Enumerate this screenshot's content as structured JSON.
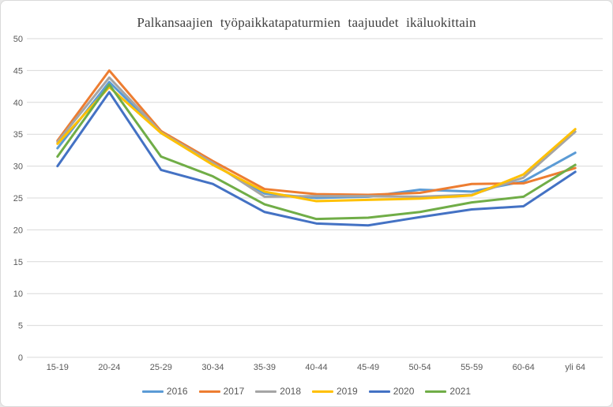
{
  "window": {
    "background": "#ffffff",
    "border_color": "#d9d9d9"
  },
  "chart_data": {
    "type": "line",
    "title": "Palkansaajien työpaikkatapaturmien taajuudet ikäluokittain",
    "title_color": "#404040",
    "xlabel": "",
    "ylabel": "",
    "categories": [
      "15-19",
      "20-24",
      "25-29",
      "30-34",
      "35-39",
      "40-44",
      "45-49",
      "50-54",
      "55-59",
      "60-64",
      "yli 64"
    ],
    "series": [
      {
        "name": "2016",
        "color": "#5B9BD5",
        "values": [
          32.8,
          43.2,
          35.2,
          30.3,
          25.7,
          25.0,
          25.2,
          26.3,
          26.0,
          27.6,
          32.1
        ]
      },
      {
        "name": "2017",
        "color": "#ED7D31",
        "values": [
          34.0,
          45.0,
          35.5,
          30.8,
          26.4,
          25.6,
          25.5,
          25.8,
          27.2,
          27.3,
          29.7
        ]
      },
      {
        "name": "2018",
        "color": "#A5A5A5",
        "values": [
          33.8,
          43.9,
          35.3,
          30.5,
          25.2,
          25.3,
          25.3,
          25.2,
          25.5,
          28.2,
          35.4
        ]
      },
      {
        "name": "2019",
        "color": "#FFC000",
        "values": [
          33.5,
          42.4,
          35.2,
          30.2,
          26.0,
          24.5,
          24.7,
          24.9,
          25.4,
          28.7,
          35.8
        ]
      },
      {
        "name": "2020",
        "color": "#4472C4",
        "values": [
          30.0,
          41.6,
          29.4,
          27.2,
          22.8,
          21.0,
          20.7,
          22.0,
          23.2,
          23.7,
          29.1
        ]
      },
      {
        "name": "2021",
        "color": "#70AD47",
        "values": [
          31.5,
          42.8,
          31.5,
          28.4,
          24.0,
          21.7,
          21.9,
          22.8,
          24.3,
          25.2,
          30.2
        ]
      }
    ],
    "ylim": [
      0,
      50
    ],
    "ytick_step": 5,
    "ytick_labels": [
      "0",
      "5",
      "10",
      "15",
      "20",
      "25",
      "30",
      "35",
      "40",
      "45",
      "50"
    ],
    "grid": "horizontal",
    "gridline_color": "#D9D9D9",
    "tick_label_color": "#595959",
    "line_width": 3,
    "legend_position": "bottom"
  }
}
